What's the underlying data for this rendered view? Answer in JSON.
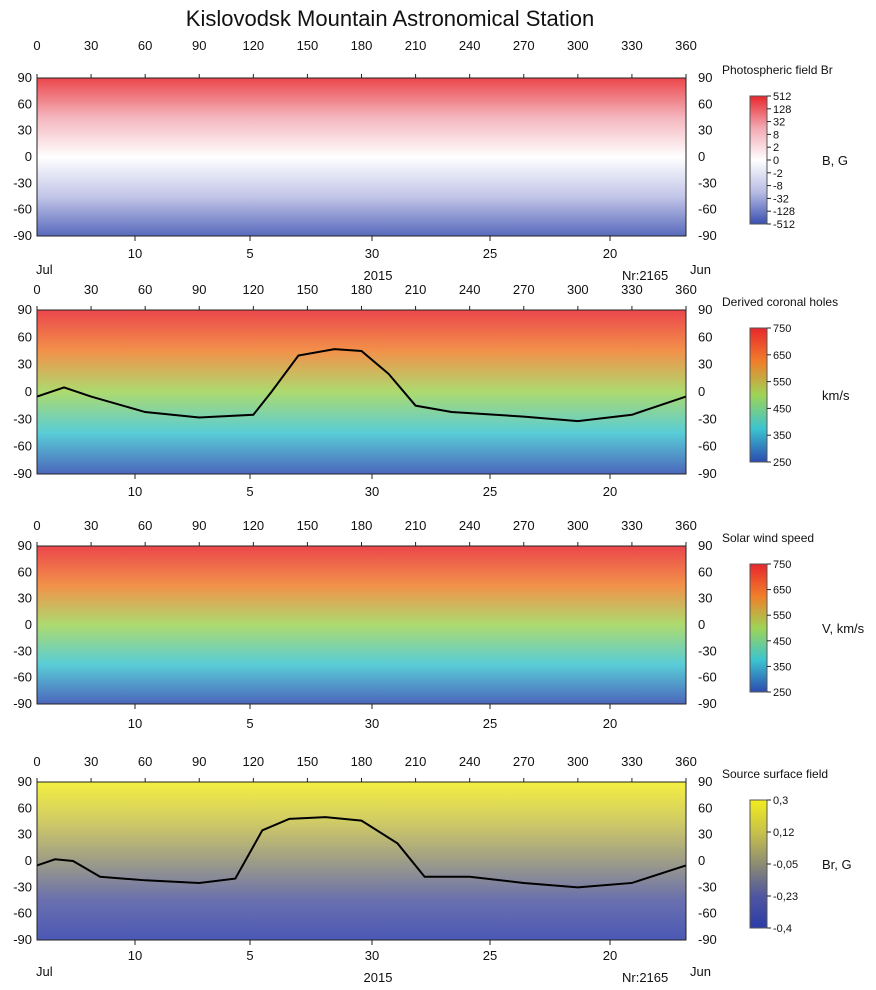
{
  "title": "Kislovodsk Mountain Astronomical Station",
  "axes": {
    "top_ticks": [
      "0",
      "30",
      "60",
      "90",
      "120",
      "150",
      "180",
      "210",
      "240",
      "270",
      "300",
      "330",
      "360"
    ],
    "left_ticks": [
      "90",
      "60",
      "30",
      "0",
      "-30",
      "-60",
      "-90"
    ],
    "right_ticks": [
      "90",
      "60",
      "30",
      "0",
      "-30",
      "-60",
      "-90"
    ],
    "date_ticks": [
      "10",
      "5",
      "30",
      "25",
      "20"
    ],
    "date_start": "Jul",
    "date_end": "Jun",
    "year": "2015",
    "rotation": "Nr:2165"
  },
  "chart_data": [
    {
      "type": "heatmap",
      "title": "Photospheric field Br",
      "unit": "B, G",
      "xlim": [
        0,
        360
      ],
      "ylim": [
        -90,
        90
      ],
      "colorbar_ticks": [
        "512",
        "128",
        "32",
        "8",
        "2",
        "0",
        "-2",
        "-8",
        "-32",
        "-128",
        "-512"
      ],
      "colorbar_colors": [
        "#e8262c",
        "#f2a9b2",
        "#ffffff",
        "#b8bce4",
        "#3a4fb0"
      ]
    },
    {
      "type": "heatmap",
      "title": "Derived coronal holes",
      "unit": "km/s",
      "xlim": [
        0,
        360
      ],
      "ylim": [
        -90,
        90
      ],
      "colorbar_ticks": [
        "750",
        "650",
        "550",
        "450",
        "350",
        "250"
      ],
      "colorbar_colors": [
        "#e8262c",
        "#f07e2a",
        "#9ed456",
        "#3cc4d0",
        "#2c4bb0"
      ],
      "neutral_line": {
        "x": [
          0,
          15,
          30,
          60,
          90,
          120,
          130,
          145,
          165,
          180,
          195,
          210,
          230,
          270,
          300,
          330,
          360
        ],
        "y": [
          -5,
          5,
          -5,
          -22,
          -28,
          -25,
          0,
          40,
          47,
          45,
          20,
          -15,
          -22,
          -27,
          -32,
          -25,
          -5
        ]
      }
    },
    {
      "type": "heatmap",
      "title": "Solar wind speed",
      "unit": "V, km/s",
      "xlim": [
        0,
        360
      ],
      "ylim": [
        -90,
        90
      ],
      "colorbar_ticks": [
        "750",
        "650",
        "550",
        "450",
        "350",
        "250"
      ],
      "colorbar_colors": [
        "#e8262c",
        "#f07e2a",
        "#9ed456",
        "#3cc4d0",
        "#2c4bb0"
      ]
    },
    {
      "type": "heatmap",
      "title": "Source surface field",
      "unit": "Br, G",
      "xlim": [
        0,
        360
      ],
      "ylim": [
        -90,
        90
      ],
      "colorbar_ticks": [
        "0,3",
        "0,12",
        "-0,05",
        "-0,23",
        "-0,4"
      ],
      "colorbar_colors": [
        "#f2ec1e",
        "#c8c24a",
        "#8d8c72",
        "#4f56a0",
        "#2c3ca8"
      ],
      "neutral_line": {
        "x": [
          0,
          10,
          20,
          35,
          60,
          90,
          110,
          125,
          140,
          160,
          180,
          200,
          215,
          240,
          270,
          300,
          330,
          360
        ],
        "y": [
          -5,
          2,
          0,
          -18,
          -22,
          -25,
          -20,
          35,
          48,
          50,
          46,
          20,
          -18,
          -18,
          -25,
          -30,
          -25,
          -5
        ]
      }
    }
  ]
}
